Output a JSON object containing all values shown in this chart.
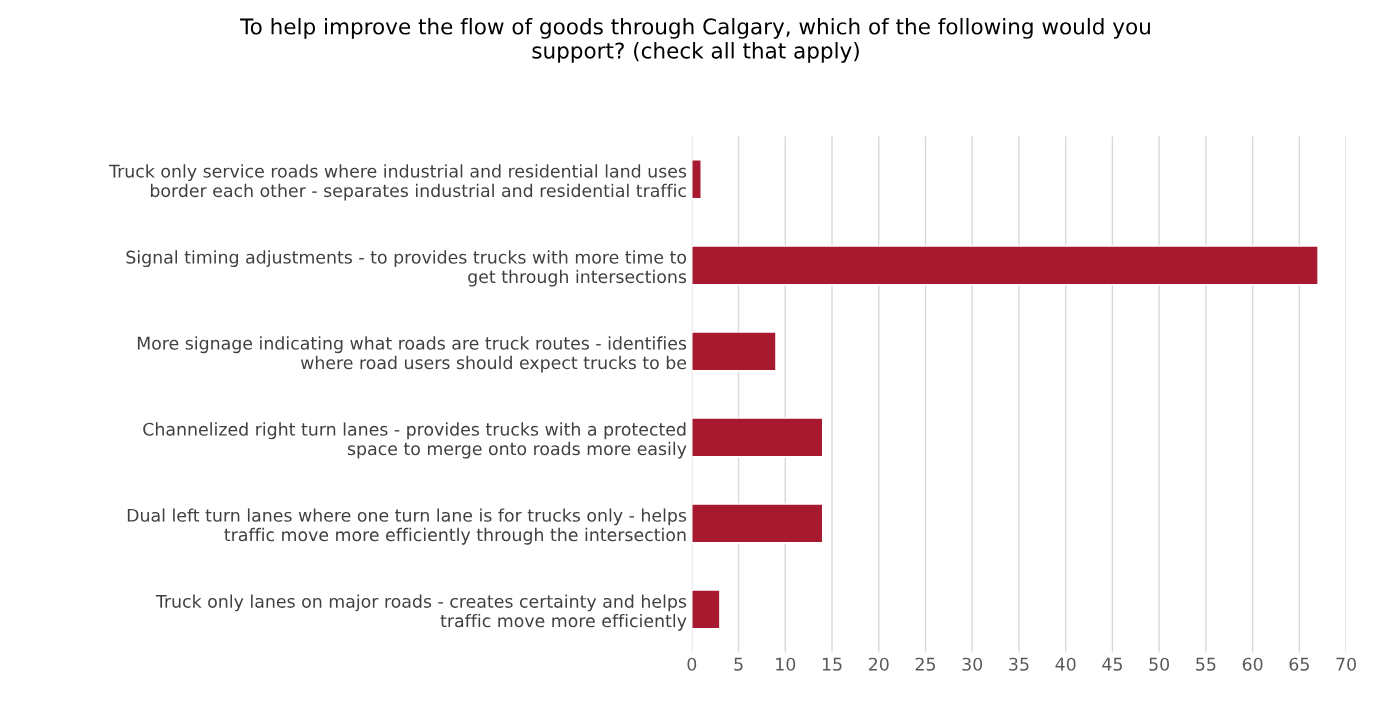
{
  "chart_data": {
    "type": "bar",
    "orientation": "horizontal",
    "title": "To help improve the flow of goods through Calgary, which of the following would you\nsupport? (check all that apply)",
    "categories": [
      "Truck only service roads where industrial and residential land uses\nborder each other - separates industrial and residential traffic",
      "Signal timing adjustments - to provides trucks with more time to\nget through intersections",
      "More signage indicating what roads are truck routes - identifies\nwhere road users should expect trucks to be",
      "Channelized right turn lanes - provides trucks with a protected\nspace to merge onto roads more easily",
      "Dual left turn lanes where one turn lane is for trucks only - helps\ntraffic move more efficiently through the intersection",
      "Truck only lanes on major roads - creates certainty and helps\ntraffic move more efficiently"
    ],
    "values": [
      1,
      67,
      9,
      14,
      14,
      3
    ],
    "color": "#a6192e",
    "xlim": [
      0,
      70
    ],
    "xticks": [
      0,
      5,
      10,
      15,
      20,
      25,
      30,
      35,
      40,
      45,
      50,
      55,
      60,
      65,
      70
    ],
    "grid": "x",
    "legend": false
  }
}
